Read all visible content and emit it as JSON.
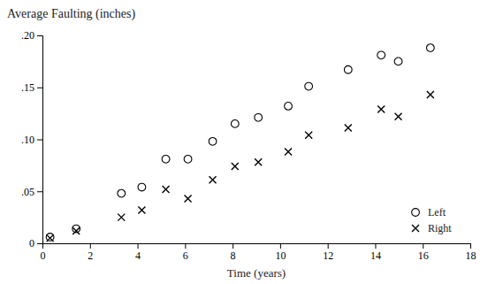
{
  "chart_data": {
    "type": "scatter",
    "title": "Average Faulting (inches)",
    "xlabel": "Time (years)",
    "x": [
      0.32,
      1.42,
      3.32,
      4.18,
      5.19,
      6.12,
      7.16,
      8.1,
      9.08,
      10.34,
      11.2,
      12.86,
      14.25,
      14.97,
      16.32
    ],
    "series": [
      {
        "name": "Left",
        "color": "black",
        "marker": "circle",
        "values": [
          0.006,
          0.014,
          0.048,
          0.054,
          0.081,
          0.081,
          0.098,
          0.115,
          0.121,
          0.132,
          0.151,
          0.167,
          0.181,
          0.175,
          0.188
        ]
      },
      {
        "name": "Right",
        "color": "black",
        "marker": "x",
        "values": [
          0.005,
          0.012,
          0.025,
          0.032,
          0.052,
          0.043,
          0.061,
          0.074,
          0.078,
          0.088,
          0.104,
          0.111,
          0.129,
          0.122,
          0.143
        ]
      }
    ],
    "xlim": [
      0,
      18
    ],
    "ylim": [
      0,
      0.2
    ],
    "xticks": [
      0,
      2,
      4,
      6,
      8,
      10,
      12,
      14,
      16,
      18
    ],
    "yticks": [
      0,
      {
        "value": 0.05,
        "label": ".05"
      },
      {
        "value": 0.1,
        "label": ".10"
      },
      {
        "value": 0.15,
        "label": ".15"
      },
      {
        "value": 0.2,
        "label": ".20"
      }
    ],
    "grid": false,
    "legend": "lower right"
  }
}
